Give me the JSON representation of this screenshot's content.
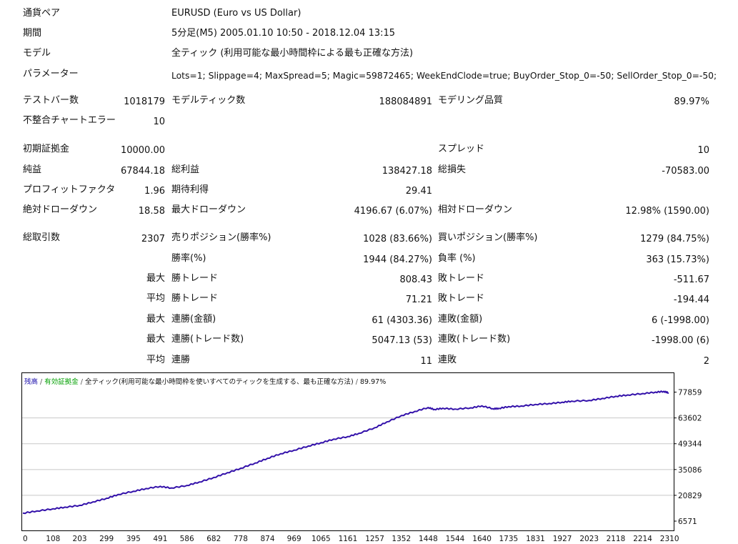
{
  "report": {
    "symbol_label": "通貨ペア",
    "symbol_value": "EURUSD (Euro vs US Dollar)",
    "period_label": "期間",
    "period_value": "5分足(M5) 2005.01.10 10:50 - 2018.12.04 13:15",
    "model_label": "モデル",
    "model_value": "全ティック (利用可能な最小時間枠による最も正確な方法)",
    "params_label": "パラメーター",
    "params_value": "Lots=1; Slippage=4; MaxSpread=5; Magic=59872465; WeekEndClode=true; BuyOrder_Stop_0=-50; SellOrder_Stop_0=-50;",
    "bars_label": "テストバー数",
    "bars_value": "1018179",
    "ticks_label": "モデルティック数",
    "ticks_value": "188084891",
    "quality_label": "モデリング品質",
    "quality_value": "89.97%",
    "mismatch_label": "不整合チャートエラー",
    "mismatch_value": "10",
    "deposit_label": "初期証拠金",
    "deposit_value": "10000.00",
    "spread_label": "スプレッド",
    "spread_value": "10",
    "net_label": "純益",
    "net_value": "67844.18",
    "gross_profit_label": "総利益",
    "gross_profit_value": "138427.18",
    "gross_loss_label": "総損失",
    "gross_loss_value": "-70583.00",
    "pf_label": "プロフィットファクタ",
    "pf_value": "1.96",
    "payoff_label": "期待利得",
    "payoff_value": "29.41",
    "abs_dd_label": "絶対ドローダウン",
    "abs_dd_value": "18.58",
    "max_dd_label": "最大ドローダウン",
    "max_dd_value": "4196.67 (6.07%)",
    "rel_dd_label": "相対ドローダウン",
    "rel_dd_value": "12.98% (1590.00)",
    "trades_label": "総取引数",
    "trades_value": "2307",
    "short_label": "売りポジション(勝率%)",
    "short_value": "1028 (83.66%)",
    "long_label": "買いポジション(勝率%)",
    "long_value": "1279 (84.75%)",
    "win_label": "勝率(%)",
    "win_value": "1944 (84.27%)",
    "loss_label": "負率 (%)",
    "loss_value": "363 (15.73%)",
    "largest_prefix": "最大",
    "largest_win_label": "勝トレード",
    "largest_win_value": "808.43",
    "largest_loss_label": "敗トレード",
    "largest_loss_value": "-511.67",
    "average_prefix": "平均",
    "avg_win_label": "勝トレード",
    "avg_win_value": "71.21",
    "avg_loss_label": "敗トレード",
    "avg_loss_value": "-194.44",
    "max_consec_prefix": "最大",
    "max_consec_win_label": "連勝(金額)",
    "max_consec_win_value": "61 (4303.36)",
    "max_consec_loss_label": "連敗(金額)",
    "max_consec_loss_value": "6 (-1998.00)",
    "max_consec2_prefix": "最大",
    "max_consec_profit_label": "連勝(トレード数)",
    "max_consec_profit_value": "5047.13 (53)",
    "max_consec_losses_label": "連敗(トレード数)",
    "max_consec_losses_value": "-1998.00 (6)",
    "avg_consec_prefix": "平均",
    "avg_consec_win_label": "連勝",
    "avg_consec_win_value": "11",
    "avg_consec_loss_label": "連敗",
    "avg_consec_loss_value": "2"
  },
  "chart_legend": {
    "balance": "残高",
    "sep1": " / ",
    "equity": "有効証拠金",
    "sep2": " / ",
    "model_text": "全ティック(利用可能な最小時間枠を使いすべてのティックを生成する、最も正確な方法)",
    "sep3": " / ",
    "quality": "89.97%"
  },
  "colors": {
    "balance": "#1a0dab",
    "equity": "#00a000",
    "line": "#3311aa",
    "grid": "#c8c8c8",
    "border": "#000000"
  },
  "chart_data": {
    "type": "line",
    "x_ticks": [
      "0",
      "108",
      "203",
      "299",
      "395",
      "491",
      "586",
      "682",
      "778",
      "874",
      "969",
      "1065",
      "1161",
      "1257",
      "1352",
      "1448",
      "1544",
      "1640",
      "1735",
      "1831",
      "1927",
      "2023",
      "2118",
      "2214",
      "2310"
    ],
    "x_tick_values": [
      0,
      108,
      203,
      299,
      395,
      491,
      586,
      682,
      778,
      874,
      969,
      1065,
      1161,
      1257,
      1352,
      1448,
      1544,
      1640,
      1735,
      1831,
      1927,
      2023,
      2118,
      2214,
      2310
    ],
    "y_ticks": [
      "77859",
      "63602",
      "49344",
      "35086",
      "20829",
      "6571"
    ],
    "y_tick_values": [
      77859,
      63602,
      49344,
      35086,
      20829,
      6571
    ],
    "ylim": [
      6571,
      84000
    ],
    "xlim": [
      0,
      2307
    ],
    "series": [
      {
        "name": "残高",
        "x": [
          0,
          50,
          108,
          150,
          203,
          250,
          299,
          340,
          395,
          440,
          491,
          530,
          586,
          630,
          682,
          730,
          778,
          830,
          874,
          920,
          969,
          1020,
          1065,
          1110,
          1161,
          1200,
          1257,
          1300,
          1352,
          1400,
          1448,
          1470,
          1500,
          1544,
          1600,
          1640,
          1680,
          1700,
          1735,
          1780,
          1831,
          1880,
          1927,
          1960,
          2023,
          2070,
          2118,
          2160,
          2214,
          2260,
          2290,
          2307
        ],
        "values": [
          11000,
          12200,
          13400,
          14300,
          15300,
          17200,
          19200,
          21300,
          23100,
          24600,
          25800,
          24900,
          26300,
          28200,
          30700,
          33300,
          35800,
          38700,
          41300,
          43800,
          45800,
          48100,
          49900,
          51900,
          53300,
          55100,
          58200,
          61400,
          64900,
          67200,
          69400,
          68300,
          69000,
          68500,
          69200,
          70300,
          68700,
          68900,
          69900,
          70200,
          71100,
          71600,
          72300,
          72900,
          73300,
          74400,
          75600,
          76300,
          77100,
          77900,
          78300,
          77500
        ]
      }
    ]
  }
}
